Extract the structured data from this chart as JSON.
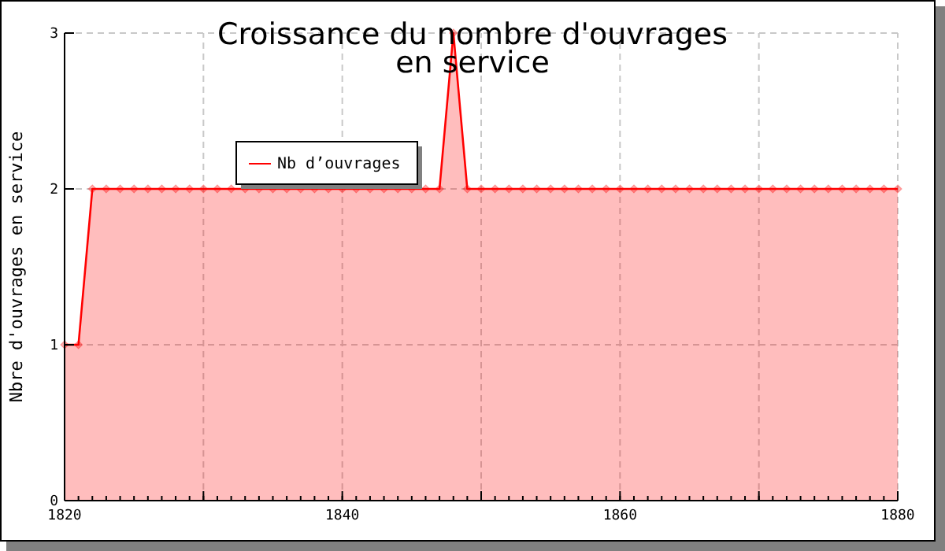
{
  "chart_data": {
    "type": "area",
    "title": "Croissance du nombre d'ouvrages\nen service",
    "ylabel": "Nbre d'ouvrages en service",
    "x": [
      1820,
      1821,
      1822,
      1823,
      1824,
      1825,
      1826,
      1827,
      1828,
      1829,
      1830,
      1831,
      1832,
      1833,
      1834,
      1835,
      1836,
      1837,
      1838,
      1839,
      1840,
      1841,
      1842,
      1843,
      1844,
      1845,
      1846,
      1847,
      1848,
      1849,
      1850,
      1851,
      1852,
      1853,
      1854,
      1855,
      1856,
      1857,
      1858,
      1859,
      1860,
      1861,
      1862,
      1863,
      1864,
      1865,
      1866,
      1867,
      1868,
      1869,
      1870,
      1871,
      1872,
      1873,
      1874,
      1875,
      1876,
      1877,
      1878,
      1879,
      1880
    ],
    "series": [
      {
        "name": "Nb d’ouvrages",
        "color": "#ff0000",
        "values": [
          1,
          1,
          2,
          2,
          2,
          2,
          2,
          2,
          2,
          2,
          2,
          2,
          2,
          2,
          2,
          2,
          2,
          2,
          2,
          2,
          2,
          2,
          2,
          2,
          2,
          2,
          2,
          2,
          3,
          2,
          2,
          2,
          2,
          2,
          2,
          2,
          2,
          2,
          2,
          2,
          2,
          2,
          2,
          2,
          2,
          2,
          2,
          2,
          2,
          2,
          2,
          2,
          2,
          2,
          2,
          2,
          2,
          2,
          2,
          2,
          2
        ]
      }
    ],
    "xlim": [
      1820,
      1880
    ],
    "xticks": [
      1820,
      {
        "value": 1830,
        "label": null
      },
      1840,
      {
        "value": 1850,
        "label": null
      },
      1860,
      {
        "value": 1870,
        "label": null
      },
      1880
    ],
    "ylim": [
      0,
      3
    ],
    "yticks": [
      0,
      1,
      2,
      3
    ],
    "grid": true,
    "legend": "top left",
    "marker": "diamond",
    "line_style": "solid"
  }
}
